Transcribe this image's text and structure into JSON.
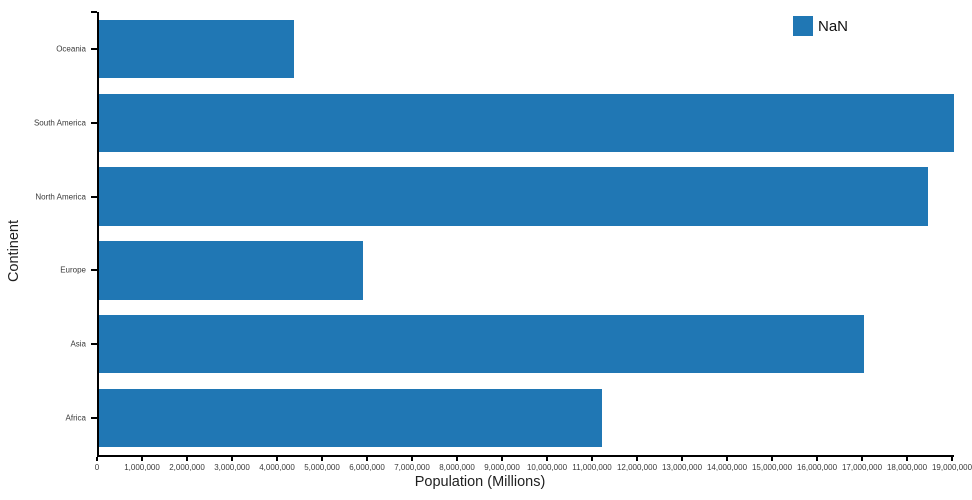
{
  "chart_data": {
    "type": "bar",
    "orientation": "horizontal",
    "title": "",
    "xlabel": "Population (Millions)",
    "ylabel": "Continent",
    "categories": [
      "Oceania",
      "South America",
      "North America",
      "Europe",
      "Asia",
      "Africa"
    ],
    "values": [
      4330000,
      19000000,
      18430000,
      5870000,
      17000000,
      11180000
    ],
    "xlim": [
      0,
      19000000
    ],
    "x_ticks": [
      0,
      1000000,
      2000000,
      3000000,
      4000000,
      5000000,
      6000000,
      7000000,
      8000000,
      9000000,
      10000000,
      11000000,
      12000000,
      13000000,
      14000000,
      15000000,
      16000000,
      17000000,
      18000000,
      19000000
    ],
    "x_tick_labels": [
      "0",
      "1,000,000",
      "2,000,000",
      "3,000,000",
      "4,000,000",
      "5,000,000",
      "6,000,000",
      "7,000,000",
      "8,000,000",
      "9,000,000",
      "10,000,000",
      "11,000,000",
      "12,000,000",
      "13,000,000",
      "14,000,000",
      "15,000,000",
      "16,000,000",
      "17,000,000",
      "18,000,000",
      "19,000,000"
    ],
    "bar_color": "#2077B4",
    "grid": false,
    "legend": {
      "label": "NaN",
      "color": "#2077B4",
      "position": "top-right"
    }
  }
}
